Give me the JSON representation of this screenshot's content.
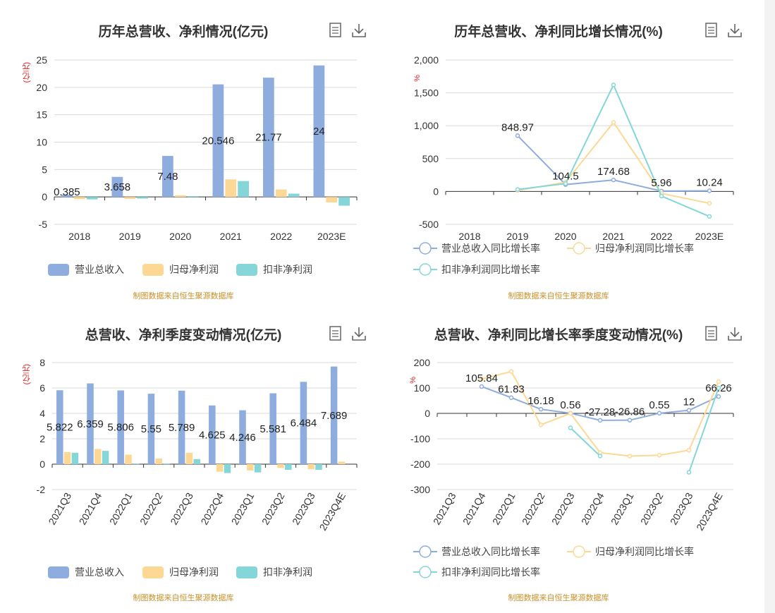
{
  "colors": {
    "revenue": "#8eadde",
    "net_profit": "#fdd894",
    "deducted_net_profit": "#84d6d8",
    "unit": "#e02020",
    "source": "#c8902a",
    "axis": "#333333",
    "grid": "#d9d9d9"
  },
  "source_note": "制图数据来自恒生聚源数据库",
  "icons": [
    "document-icon",
    "download-icon"
  ],
  "charts": {
    "annual_amount": {
      "title": "历年总营收、净利情况(亿元)",
      "unit": "(亿元)",
      "legend": [
        "营业总收入",
        "归母净利润",
        "扣非净利润"
      ]
    },
    "annual_growth": {
      "title": "历年总营收、净利同比增长情况(%)",
      "unit": "%",
      "legend": [
        "营业总收入同比增长率",
        "归母净利润同比增长率",
        "扣非净利润同比增长率"
      ]
    },
    "quarterly_amount": {
      "title": "总营收、净利季度变动情况(亿元)",
      "unit": "(亿元)",
      "legend": [
        "营业总收入",
        "归母净利润",
        "扣非净利润"
      ]
    },
    "quarterly_growth": {
      "title": "总营收、净利同比增长率季度变动情况(%)",
      "unit": "%",
      "legend": [
        "营业总收入同比增长率",
        "归母净利润同比增长率",
        "扣非净利润同比增长率"
      ]
    }
  },
  "chart_data": [
    {
      "id": "annual_amount",
      "type": "bar",
      "title": "历年总营收、净利情况(亿元)",
      "ylabel": "(亿元)",
      "categories": [
        "2018",
        "2019",
        "2020",
        "2021",
        "2022",
        "2023E"
      ],
      "ylim": [
        -5,
        25
      ],
      "yticks": [
        -5,
        0,
        5,
        10,
        15,
        20,
        25
      ],
      "grid": true,
      "legend_position": "bottom",
      "series": [
        {
          "name": "营业总收入",
          "values": [
            0.385,
            3.658,
            7.48,
            20.546,
            21.77,
            24
          ],
          "labels": [
            "0.385",
            "3.658",
            "7.48",
            "20.546",
            "21.77",
            "24"
          ]
        },
        {
          "name": "归母净利润",
          "values": [
            -0.4,
            -0.35,
            0.3,
            3.2,
            1.35,
            -1.0
          ]
        },
        {
          "name": "扣非净利润",
          "values": [
            -0.45,
            -0.3,
            0.15,
            2.9,
            0.6,
            -1.6
          ]
        }
      ]
    },
    {
      "id": "annual_growth",
      "type": "line",
      "title": "历年总营收、净利同比增长情况(%)",
      "ylabel": "%",
      "categories": [
        "2018",
        "2019",
        "2020",
        "2021",
        "2022",
        "2023E"
      ],
      "ylim": [
        -500,
        2000
      ],
      "yticks": [
        -500,
        0,
        500,
        1000,
        1500,
        2000
      ],
      "ytick_labels": [
        "-500",
        "0",
        "500",
        "1,000",
        "1,500",
        "2,000"
      ],
      "grid": true,
      "legend_position": "bottom",
      "series": [
        {
          "name": "营业总收入同比增长率",
          "values": [
            null,
            848.97,
            104.5,
            174.68,
            5.96,
            10.24
          ],
          "labels": [
            null,
            "848.97",
            "104.5",
            "174.68",
            "5.96",
            "10.24"
          ]
        },
        {
          "name": "归母净利润同比增长率",
          "values": [
            null,
            15,
            140,
            1050,
            -30,
            -180
          ]
        },
        {
          "name": "扣非净利润同比增长率",
          "values": [
            null,
            30,
            120,
            1620,
            -70,
            -380
          ]
        }
      ]
    },
    {
      "id": "quarterly_amount",
      "type": "bar",
      "title": "总营收、净利季度变动情况(亿元)",
      "ylabel": "(亿元)",
      "categories": [
        "2021Q3",
        "2021Q4",
        "2022Q1",
        "2022Q2",
        "2022Q3",
        "2022Q4",
        "2023Q1",
        "2023Q2",
        "2023Q3",
        "2023Q4E"
      ],
      "ylim": [
        -2,
        8
      ],
      "yticks": [
        -2,
        0,
        2,
        4,
        6,
        8
      ],
      "grid": true,
      "legend_position": "bottom",
      "series": [
        {
          "name": "营业总收入",
          "values": [
            5.822,
            6.359,
            5.806,
            5.55,
            5.789,
            4.625,
            4.246,
            5.581,
            6.484,
            7.689
          ],
          "labels": [
            "5.822",
            "6.359",
            "5.806",
            "5.55",
            "5.789",
            "4.625",
            "4.246",
            "5.581",
            "6.484",
            "7.689"
          ]
        },
        {
          "name": "归母净利润",
          "values": [
            0.95,
            1.2,
            0.75,
            0.45,
            0.9,
            -0.6,
            -0.5,
            -0.3,
            -0.4,
            0.2
          ]
        },
        {
          "name": "扣非净利润",
          "values": [
            0.9,
            1.05,
            0.05,
            0.05,
            0.4,
            -0.7,
            -0.65,
            -0.45,
            -0.45,
            null
          ]
        }
      ]
    },
    {
      "id": "quarterly_growth",
      "type": "line",
      "title": "总营收、净利同比增长率季度变动情况(%)",
      "ylabel": "%",
      "categories": [
        "2021Q3",
        "2021Q4",
        "2022Q1",
        "2022Q2",
        "2022Q3",
        "2022Q4",
        "2023Q1",
        "2023Q2",
        "2023Q3",
        "2023Q4E"
      ],
      "ylim": [
        -300,
        200
      ],
      "yticks": [
        -300,
        -200,
        -100,
        0,
        100,
        200
      ],
      "grid": true,
      "legend_position": "bottom",
      "series": [
        {
          "name": "营业总收入同比增长率",
          "values": [
            null,
            105.84,
            61.83,
            16.18,
            0.56,
            -27.28,
            -26.86,
            0.55,
            12,
            66.26
          ],
          "labels": [
            null,
            "105.84",
            "61.83",
            "16.18",
            "0.56",
            "-27.28",
            "-26.86",
            "0.55",
            "12",
            "66.26"
          ]
        },
        {
          "name": "归母净利润同比增长率",
          "values": [
            null,
            135,
            165,
            -45,
            0,
            -155,
            -168,
            -165,
            -145,
            125
          ]
        },
        {
          "name": "扣非净利润同比增长率",
          "values": [
            null,
            null,
            null,
            null,
            -57,
            -168,
            null,
            null,
            -232,
            100
          ]
        }
      ]
    }
  ]
}
